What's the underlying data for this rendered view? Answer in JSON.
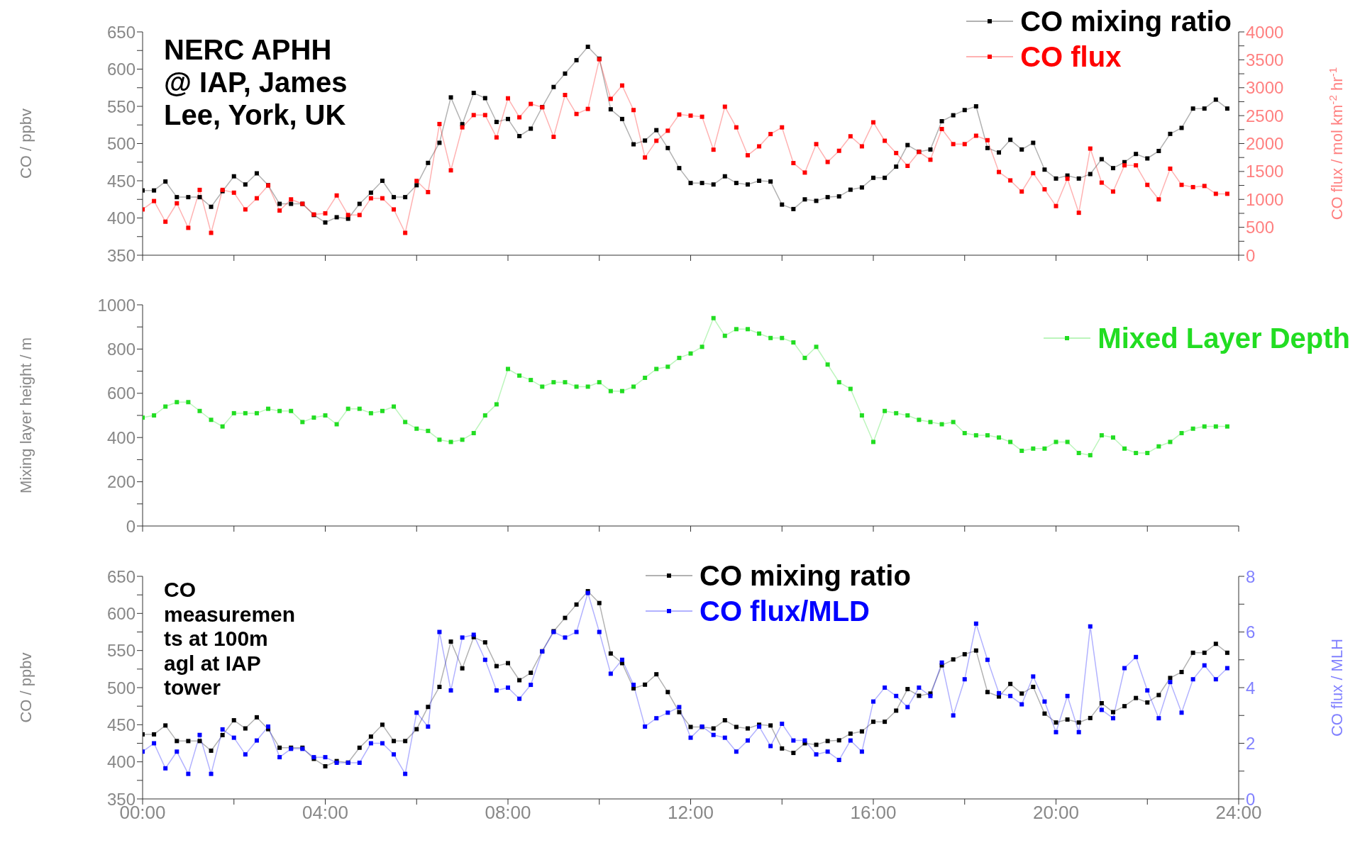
{
  "chart_data": [
    {
      "type": "line",
      "annotations": [
        "NERC APHH\n@ IAP, James\nLee, York, UK"
      ],
      "ylabel": "CO / ppbv",
      "y2label": "CO flux / mol km$^{-2}$ hr$^{-1}$",
      "x": [
        0,
        0.25,
        0.5,
        0.75,
        1,
        1.25,
        1.5,
        1.75,
        2,
        2.25,
        2.5,
        2.75,
        3,
        3.25,
        3.5,
        3.75,
        4,
        4.25,
        4.5,
        4.75,
        5,
        5.25,
        5.5,
        5.75,
        6,
        6.25,
        6.5,
        6.75,
        7,
        7.25,
        7.5,
        7.75,
        8,
        8.25,
        8.5,
        8.75,
        9,
        9.25,
        9.5,
        9.75,
        10,
        10.25,
        10.5,
        10.75,
        11,
        11.25,
        11.5,
        11.75,
        12,
        12.25,
        12.5,
        12.75,
        13,
        13.25,
        13.5,
        13.75,
        14,
        14.25,
        14.5,
        14.75,
        15,
        15.25,
        15.5,
        15.75,
        16,
        16.25,
        16.5,
        16.75,
        17,
        17.25,
        17.5,
        17.75,
        18,
        18.25,
        18.5,
        18.75,
        19,
        19.25,
        19.5,
        19.75,
        20,
        20.25,
        20.5,
        20.75,
        21,
        21.25,
        21.5,
        21.75,
        22,
        22.25,
        22.5,
        22.75,
        23,
        23.25,
        23.5,
        23.75
      ],
      "series": [
        {
          "name": "CO mixing ratio",
          "color": "#000000",
          "values": [
            437,
            437,
            449,
            428,
            428,
            428,
            415,
            436,
            456,
            445,
            460,
            444,
            419,
            419,
            419,
            404,
            394,
            401,
            399,
            419,
            434,
            450,
            428,
            428,
            444,
            474,
            501,
            562,
            526,
            568,
            561,
            529,
            533,
            510,
            520,
            549,
            576,
            594,
            612,
            630,
            614,
            546,
            533,
            499,
            504,
            518,
            494,
            467,
            447,
            447,
            445,
            456,
            447,
            445,
            450,
            449,
            418,
            412,
            425,
            423,
            428,
            429,
            438,
            441,
            454,
            454,
            469,
            498,
            489,
            492,
            530,
            538,
            545,
            550,
            494,
            488,
            505,
            492,
            501,
            465,
            453,
            457,
            453,
            459,
            479,
            467,
            475,
            486,
            480,
            490,
            513,
            521,
            547,
            547,
            559,
            547
          ]
        },
        {
          "name": "CO flux",
          "color": "#ff0000",
          "axis": "y2",
          "values": [
            820,
            970,
            600,
            930,
            490,
            1170,
            400,
            1170,
            1120,
            820,
            1020,
            1250,
            800,
            1000,
            920,
            730,
            750,
            1070,
            720,
            720,
            1020,
            1020,
            820,
            400,
            1330,
            1130,
            2350,
            1520,
            2290,
            2510,
            2510,
            2110,
            2810,
            2470,
            2710,
            2650,
            2120,
            2870,
            2530,
            2620,
            3510,
            2800,
            3040,
            2600,
            1750,
            2050,
            2230,
            2520,
            2500,
            2480,
            1890,
            2660,
            2290,
            1790,
            1950,
            2170,
            2290,
            1650,
            1480,
            1990,
            1670,
            1870,
            2130,
            1950,
            2380,
            2050,
            1830,
            1600,
            1850,
            1710,
            2260,
            1990,
            1990,
            2140,
            2060,
            1490,
            1340,
            1140,
            1470,
            1180,
            880,
            1370,
            760,
            1910,
            1300,
            1140,
            1610,
            1610,
            1260,
            1000,
            1550,
            1260,
            1220,
            1240,
            1100,
            1100
          ]
        }
      ],
      "xlim": [
        0,
        24
      ],
      "xticks": [
        {
          "value": 0,
          "label": null
        },
        {
          "value": 2,
          "label": null
        },
        {
          "value": 4,
          "label": null
        },
        {
          "value": 6,
          "label": null
        },
        {
          "value": 8,
          "label": null
        },
        {
          "value": 10,
          "label": null
        },
        {
          "value": 12,
          "label": null
        },
        {
          "value": 14,
          "label": null
        },
        {
          "value": 16,
          "label": null
        },
        {
          "value": 18,
          "label": null
        },
        {
          "value": 20,
          "label": null
        },
        {
          "value": 22,
          "label": null
        },
        {
          "value": 24,
          "label": null
        }
      ],
      "ylim": [
        350,
        650
      ],
      "yticks": [
        350,
        {
          "value": 375,
          "label": null
        },
        400,
        {
          "value": 425,
          "label": null
        },
        450,
        {
          "value": 475,
          "label": null
        },
        500,
        {
          "value": 525,
          "label": null
        },
        550,
        {
          "value": 575,
          "label": null
        },
        600,
        {
          "value": 625,
          "label": null
        },
        650
      ],
      "y2lim": [
        0,
        4000
      ],
      "y2ticks": [
        0,
        {
          "value": 250,
          "label": null
        },
        500,
        {
          "value": 750,
          "label": null
        },
        1000,
        {
          "value": 1250,
          "label": null
        },
        1500,
        {
          "value": 1750,
          "label": null
        },
        2000,
        {
          "value": 2250,
          "label": null
        },
        2500,
        {
          "value": 2750,
          "label": null
        },
        3000,
        {
          "value": 3250,
          "label": null
        },
        3500,
        {
          "value": 3750,
          "label": null
        },
        4000
      ],
      "tick_labels": "y",
      "marker": "square",
      "legend": "top right"
    },
    {
      "type": "line",
      "ylabel": "Mixing layer height / m",
      "x": [
        0,
        0.25,
        0.5,
        0.75,
        1,
        1.25,
        1.5,
        1.75,
        2,
        2.25,
        2.5,
        2.75,
        3,
        3.25,
        3.5,
        3.75,
        4,
        4.25,
        4.5,
        4.75,
        5,
        5.25,
        5.5,
        5.75,
        6,
        6.25,
        6.5,
        6.75,
        7,
        7.25,
        7.5,
        7.75,
        8,
        8.25,
        8.5,
        8.75,
        9,
        9.25,
        9.5,
        9.75,
        10,
        10.25,
        10.5,
        10.75,
        11,
        11.25,
        11.5,
        11.75,
        12,
        12.25,
        12.5,
        12.75,
        13,
        13.25,
        13.5,
        13.75,
        14,
        14.25,
        14.5,
        14.75,
        15,
        15.25,
        15.5,
        15.75,
        16,
        16.25,
        16.5,
        16.75,
        17,
        17.25,
        17.5,
        17.75,
        18,
        18.25,
        18.5,
        18.75,
        19,
        19.25,
        19.5,
        19.75,
        20,
        20.25,
        20.5,
        20.75,
        21,
        21.25,
        21.5,
        21.75,
        22,
        22.25,
        22.5,
        22.75,
        23,
        23.25,
        23.5,
        23.75
      ],
      "series": [
        {
          "name": "Mixed Layer Depth",
          "color": "#22dd22",
          "values": [
            490,
            500,
            540,
            560,
            560,
            520,
            480,
            450,
            510,
            510,
            510,
            530,
            520,
            520,
            470,
            490,
            500,
            460,
            530,
            530,
            510,
            520,
            540,
            470,
            440,
            430,
            390,
            380,
            390,
            420,
            500,
            550,
            710,
            680,
            660,
            630,
            650,
            650,
            630,
            630,
            650,
            610,
            610,
            630,
            670,
            710,
            720,
            760,
            780,
            810,
            940,
            860,
            890,
            890,
            870,
            850,
            850,
            830,
            760,
            810,
            730,
            650,
            620,
            500,
            380,
            520,
            510,
            500,
            480,
            470,
            460,
            470,
            420,
            410,
            410,
            400,
            380,
            340,
            350,
            350,
            380,
            380,
            330,
            320,
            410,
            400,
            350,
            330,
            330,
            360,
            380,
            420,
            440,
            450,
            450,
            450
          ]
        }
      ],
      "xlim": [
        0,
        24
      ],
      "xticks": [
        {
          "value": 0,
          "label": null
        },
        {
          "value": 2,
          "label": null
        },
        {
          "value": 4,
          "label": null
        },
        {
          "value": 6,
          "label": null
        },
        {
          "value": 8,
          "label": null
        },
        {
          "value": 10,
          "label": null
        },
        {
          "value": 12,
          "label": null
        },
        {
          "value": 14,
          "label": null
        },
        {
          "value": 16,
          "label": null
        },
        {
          "value": 18,
          "label": null
        },
        {
          "value": 20,
          "label": null
        },
        {
          "value": 22,
          "label": null
        },
        {
          "value": 24,
          "label": null
        }
      ],
      "ylim": [
        0,
        1000
      ],
      "yticks": [
        0,
        {
          "value": 100,
          "label": null
        },
        200,
        {
          "value": 300,
          "label": null
        },
        400,
        {
          "value": 500,
          "label": null
        },
        600,
        {
          "value": 700,
          "label": null
        },
        800,
        {
          "value": 900,
          "label": null
        },
        1000
      ],
      "tick_labels": "y",
      "marker": "square",
      "legend": "right"
    },
    {
      "type": "line",
      "annotations": [
        "CO\nmeasuremen\nts at 100m\nagl at IAP\ntower"
      ],
      "ylabel": "CO / ppbv",
      "y2label": "CO flux / MLH",
      "x": [
        0,
        0.25,
        0.5,
        0.75,
        1,
        1.25,
        1.5,
        1.75,
        2,
        2.25,
        2.5,
        2.75,
        3,
        3.25,
        3.5,
        3.75,
        4,
        4.25,
        4.5,
        4.75,
        5,
        5.25,
        5.5,
        5.75,
        6,
        6.25,
        6.5,
        6.75,
        7,
        7.25,
        7.5,
        7.75,
        8,
        8.25,
        8.5,
        8.75,
        9,
        9.25,
        9.5,
        9.75,
        10,
        10.25,
        10.5,
        10.75,
        11,
        11.25,
        11.5,
        11.75,
        12,
        12.25,
        12.5,
        12.75,
        13,
        13.25,
        13.5,
        13.75,
        14,
        14.25,
        14.5,
        14.75,
        15,
        15.25,
        15.5,
        15.75,
        16,
        16.25,
        16.5,
        16.75,
        17,
        17.25,
        17.5,
        17.75,
        18,
        18.25,
        18.5,
        18.75,
        19,
        19.25,
        19.5,
        19.75,
        20,
        20.25,
        20.5,
        20.75,
        21,
        21.25,
        21.5,
        21.75,
        22,
        22.25,
        22.5,
        22.75,
        23,
        23.25,
        23.5,
        23.75
      ],
      "series": [
        {
          "name": "CO mixing ratio",
          "color": "#000000",
          "values": [
            437,
            437,
            449,
            428,
            428,
            428,
            415,
            436,
            456,
            445,
            460,
            444,
            419,
            419,
            419,
            404,
            394,
            401,
            399,
            419,
            434,
            450,
            428,
            428,
            444,
            474,
            501,
            562,
            526,
            568,
            561,
            529,
            533,
            510,
            520,
            549,
            576,
            594,
            612,
            630,
            614,
            546,
            533,
            499,
            504,
            518,
            494,
            467,
            447,
            447,
            445,
            456,
            447,
            445,
            450,
            449,
            418,
            412,
            425,
            423,
            428,
            429,
            438,
            441,
            454,
            454,
            469,
            498,
            489,
            492,
            530,
            538,
            545,
            550,
            494,
            488,
            505,
            492,
            501,
            465,
            453,
            457,
            453,
            459,
            479,
            467,
            475,
            486,
            480,
            490,
            513,
            521,
            547,
            547,
            559,
            547
          ]
        },
        {
          "name": "CO flux/MLD",
          "color": "#0000ff",
          "axis": "y2",
          "values": [
            1.7,
            2.0,
            1.1,
            1.7,
            0.9,
            2.3,
            0.9,
            2.5,
            2.2,
            1.6,
            2.1,
            2.6,
            1.5,
            1.8,
            1.8,
            1.5,
            1.5,
            1.3,
            1.3,
            1.3,
            2.0,
            2.0,
            1.6,
            0.9,
            3.1,
            2.6,
            6.0,
            3.9,
            5.8,
            5.9,
            5.0,
            3.9,
            4.0,
            3.6,
            4.1,
            5.3,
            6.0,
            5.8,
            6.0,
            7.4,
            6.0,
            4.5,
            5.0,
            4.1,
            2.6,
            2.9,
            3.1,
            3.3,
            2.2,
            2.6,
            2.3,
            2.2,
            1.7,
            2.1,
            2.6,
            1.9,
            2.7,
            2.1,
            2.1,
            1.6,
            1.7,
            1.4,
            2.1,
            1.7,
            3.5,
            4.0,
            3.7,
            3.3,
            4.0,
            3.7,
            4.9,
            3.0,
            4.3,
            6.3,
            5.0,
            3.8,
            3.7,
            3.4,
            4.4,
            3.5,
            2.4,
            3.7,
            2.4,
            6.2,
            3.2,
            2.9,
            4.7,
            5.1,
            3.9,
            2.9,
            4.2,
            3.1,
            4.3,
            4.8,
            4.3,
            4.7
          ]
        }
      ],
      "xlim": [
        0,
        24
      ],
      "xticks": [
        {
          "value": 0,
          "label": "00:00"
        },
        {
          "value": 2,
          "label": null
        },
        {
          "value": 4,
          "label": "04:00"
        },
        {
          "value": 6,
          "label": null
        },
        {
          "value": 8,
          "label": "08:00"
        },
        {
          "value": 10,
          "label": null
        },
        {
          "value": 12,
          "label": "12:00"
        },
        {
          "value": 14,
          "label": null
        },
        {
          "value": 16,
          "label": "16:00"
        },
        {
          "value": 18,
          "label": null
        },
        {
          "value": 20,
          "label": "20:00"
        },
        {
          "value": 22,
          "label": null
        },
        {
          "value": 24,
          "label": "24:00"
        }
      ],
      "ylim": [
        350,
        650
      ],
      "yticks": [
        350,
        {
          "value": 375,
          "label": null
        },
        400,
        {
          "value": 425,
          "label": null
        },
        450,
        {
          "value": 475,
          "label": null
        },
        500,
        {
          "value": 525,
          "label": null
        },
        550,
        {
          "value": 575,
          "label": null
        },
        600,
        {
          "value": 625,
          "label": null
        },
        650
      ],
      "y2lim": [
        0,
        8
      ],
      "y2ticks": [
        0,
        {
          "value": 1,
          "label": null
        },
        2,
        {
          "value": 3,
          "label": null
        },
        4,
        {
          "value": 5,
          "label": null
        },
        6,
        {
          "value": 7,
          "label": null
        },
        8
      ],
      "marker": "square",
      "legend": "top"
    }
  ]
}
